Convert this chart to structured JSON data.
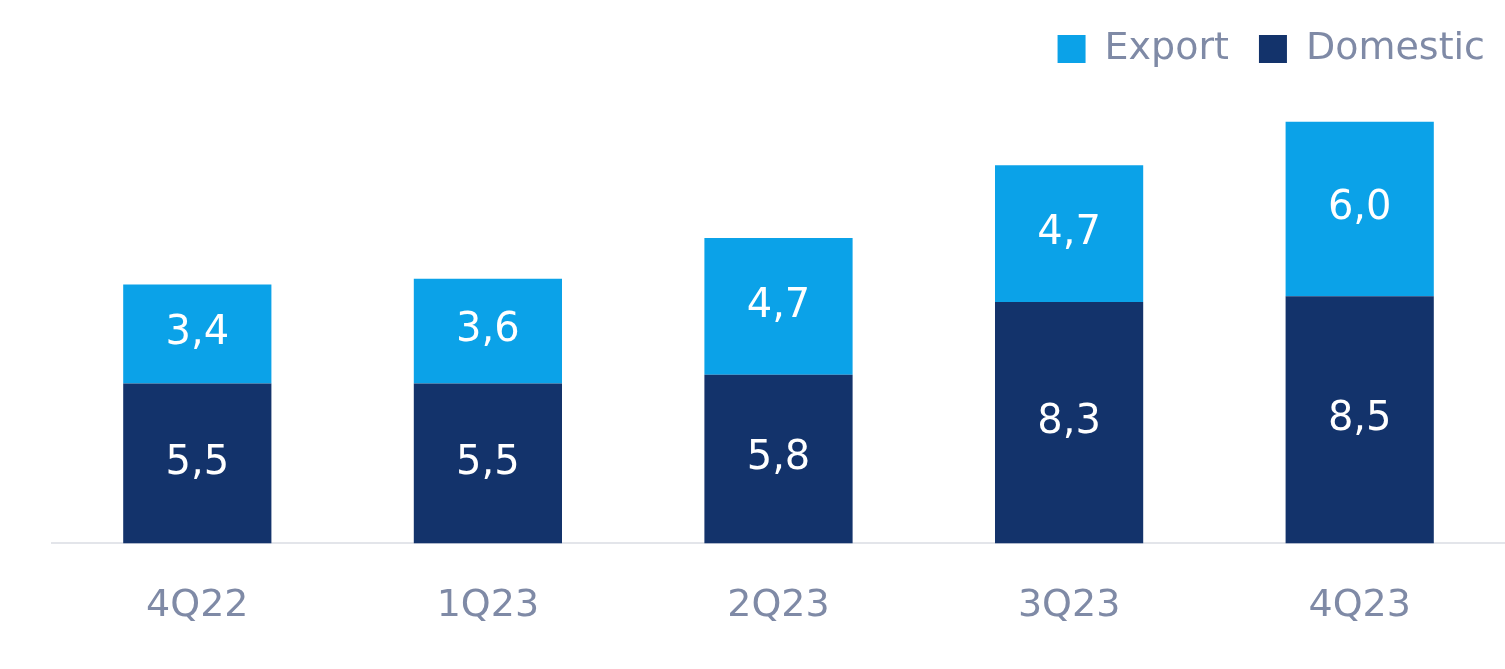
{
  "chart_data": {
    "type": "bar",
    "stacked": true,
    "categories": [
      "4Q22",
      "1Q23",
      "2Q23",
      "3Q23",
      "4Q23"
    ],
    "series": [
      {
        "name": "Domestic",
        "color": "#13336b",
        "values": [
          5.5,
          5.5,
          5.8,
          8.3,
          8.5
        ],
        "value_labels": [
          "5,5",
          "5,5",
          "5,8",
          "8,3",
          "8,5"
        ]
      },
      {
        "name": "Export",
        "color": "#0ba2e8",
        "values": [
          3.4,
          3.6,
          4.7,
          4.7,
          6.0
        ],
        "value_labels": [
          "3,4",
          "3,6",
          "4,7",
          "4,7",
          "6,0"
        ]
      }
    ],
    "legend": "top right",
    "grid": false,
    "tick_labels": "x"
  }
}
